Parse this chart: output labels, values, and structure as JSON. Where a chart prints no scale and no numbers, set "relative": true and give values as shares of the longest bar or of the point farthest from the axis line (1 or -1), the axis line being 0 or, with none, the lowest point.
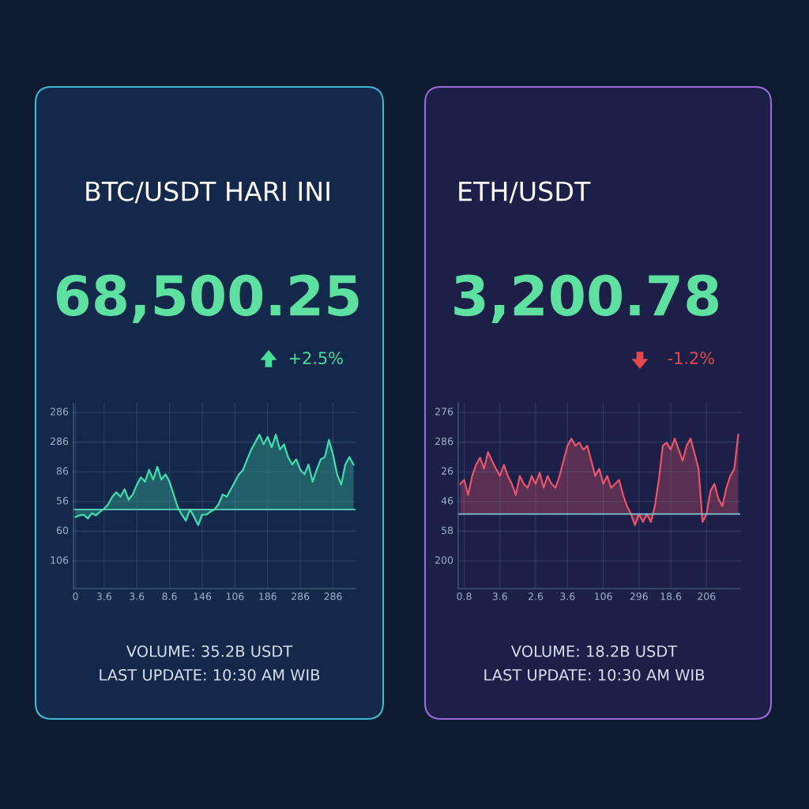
{
  "chart_data": [
    {
      "type": "area",
      "title": "BTC/USDT HARI INI",
      "subtitle": "68,500.25",
      "relative": true,
      "categories": [
        "0",
        null,
        null,
        null,
        null,
        null,
        null,
        "3.6",
        null,
        null,
        null,
        null,
        null,
        null,
        null,
        "3.6",
        null,
        null,
        null,
        null,
        null,
        null,
        null,
        "8.6",
        null,
        null,
        null,
        null,
        null,
        null,
        null,
        "146",
        null,
        null,
        null,
        null,
        null,
        null,
        null,
        "106",
        null,
        null,
        null,
        null,
        null,
        null,
        null,
        "186",
        null,
        null,
        null,
        null,
        null,
        null,
        null,
        "286",
        null,
        null,
        null,
        null,
        null,
        null,
        null,
        "286",
        null,
        null,
        null,
        null,
        null
      ],
      "series": [
        {
          "color": "#3fe0b0",
          "values": [
            -0.1,
            -0.08,
            -0.07,
            -0.12,
            -0.05,
            -0.08,
            -0.03,
            0.01,
            0.07,
            0.17,
            0.23,
            0.17,
            0.27,
            0.13,
            0.2,
            0.33,
            0.43,
            0.37,
            0.53,
            0.4,
            0.57,
            0.4,
            0.47,
            0.37,
            0.2,
            0.03,
            -0.07,
            -0.15,
            0,
            -0.1,
            -0.21,
            -0.07,
            -0.07,
            -0.03,
            0,
            0.07,
            0.2,
            0.17,
            0.27,
            0.37,
            0.47,
            0.53,
            0.67,
            0.8,
            0.9,
            1,
            0.87,
            0.97,
            0.83,
            1,
            0.8,
            0.87,
            0.7,
            0.6,
            0.67,
            0.53,
            0.47,
            0.6,
            0.37,
            0.53,
            0.67,
            0.7,
            0.93,
            0.73,
            0.47,
            0.33,
            0.6,
            0.7,
            0.6
          ]
        }
      ],
      "grid": "x",
      "ref_lines": [
        {
          "axis": "y",
          "value": 0,
          "color": "#5fd6c0"
        }
      ],
      "annotations": [
        "+2.5%",
        "VOLUME: 35.2B USDT",
        "LAST UPDATE: 10:30 AM WIB",
        "286",
        "286",
        "86",
        "56",
        "60",
        "106"
      ]
    },
    {
      "type": "area",
      "title": "ETH/USDT",
      "subtitle": "3,200.78",
      "relative": true,
      "categories": [
        null,
        "0.8",
        null,
        null,
        null,
        null,
        null,
        null,
        null,
        null,
        "3.6",
        null,
        null,
        null,
        null,
        null,
        null,
        null,
        null,
        "2.6",
        null,
        null,
        null,
        null,
        null,
        null,
        null,
        "3.6",
        null,
        null,
        null,
        null,
        null,
        null,
        null,
        null,
        "106",
        null,
        null,
        null,
        null,
        null,
        null,
        null,
        null,
        "296",
        null,
        null,
        null,
        null,
        null,
        null,
        null,
        "18.6",
        null,
        null,
        null,
        null,
        null,
        null,
        null,
        null,
        "206",
        null,
        null,
        null,
        null,
        null,
        null,
        null,
        null
      ],
      "series": [
        {
          "color": "#e8556a",
          "values": [
            0.38,
            0.43,
            0.24,
            0.48,
            0.62,
            0.71,
            0.57,
            0.78,
            0.67,
            0.57,
            0.48,
            0.62,
            0.48,
            0.38,
            0.24,
            0.48,
            0.38,
            0.33,
            0.48,
            0.38,
            0.52,
            0.33,
            0.48,
            0.38,
            0.33,
            0.48,
            0.67,
            0.86,
            0.95,
            0.86,
            0.9,
            0.81,
            0.86,
            0.67,
            0.48,
            0.57,
            0.38,
            0.48,
            0.33,
            0.38,
            0.43,
            0.24,
            0.1,
            0,
            -0.14,
            0,
            -0.1,
            0,
            -0.1,
            0.1,
            0.43,
            0.86,
            0.9,
            0.81,
            0.95,
            0.81,
            0.67,
            0.86,
            0.95,
            0.76,
            0.57,
            -0.1,
            0,
            0.29,
            0.38,
            0.19,
            0.1,
            0.33,
            0.48,
            0.57,
            1
          ]
        }
      ],
      "grid": "x",
      "ref_lines": [
        {
          "axis": "y",
          "value": 0,
          "color": "#7fc8d8"
        }
      ],
      "annotations": [
        "-1.2%",
        "VOLUME: 18.2B USDT",
        "LAST UPDATE: 10:30 AM WIB",
        "276",
        "286",
        "26",
        "46",
        "58",
        "200"
      ]
    }
  ]
}
